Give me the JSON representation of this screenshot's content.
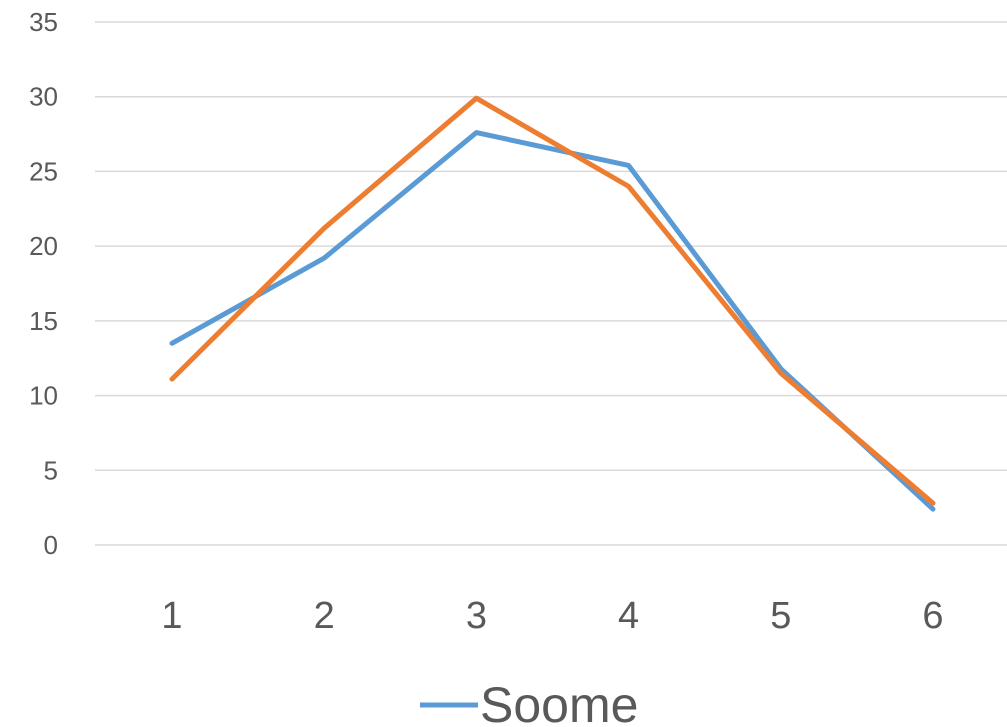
{
  "chart_data": {
    "type": "line",
    "title": "",
    "xlabel": "",
    "ylabel": "",
    "categories": [
      "1",
      "2",
      "3",
      "4",
      "5",
      "6"
    ],
    "ylim": [
      0,
      35
    ],
    "yticks": [
      0,
      5,
      10,
      15,
      20,
      25,
      30,
      35
    ],
    "grid": true,
    "legend_position": "bottom",
    "series": [
      {
        "name": "Soome",
        "color": "#5B9BD5",
        "values": [
          13.5,
          19.2,
          27.6,
          25.4,
          11.8,
          2.4
        ]
      },
      {
        "name": "",
        "color": "#ED7D31",
        "values": [
          11.1,
          21.2,
          29.9,
          24.0,
          11.5,
          2.8
        ]
      }
    ]
  }
}
